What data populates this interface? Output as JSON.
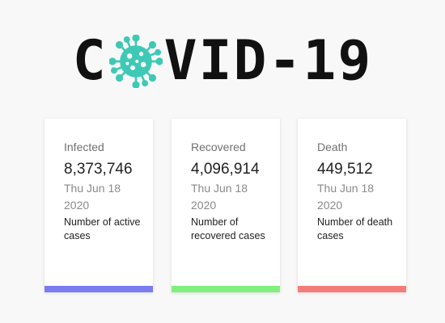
{
  "header": {
    "title_left": "C",
    "title_right": "VID-19",
    "virus_icon": "coronavirus-icon",
    "virus_color": "#3ec9b6"
  },
  "cards": [
    {
      "label": "Infected",
      "value": "8,373,746",
      "date": "Thu Jun 18 2020",
      "description": "Number of active cases",
      "bar_color": "#7b7cf0"
    },
    {
      "label": "Recovered",
      "value": "4,096,914",
      "date": "Thu Jun 18 2020",
      "description": "Number of recovered cases",
      "bar_color": "#80f07c"
    },
    {
      "label": "Death",
      "value": "449,512",
      "date": "Thu Jun 18 2020",
      "description": "Number of death cases",
      "bar_color": "#f47c78"
    }
  ]
}
